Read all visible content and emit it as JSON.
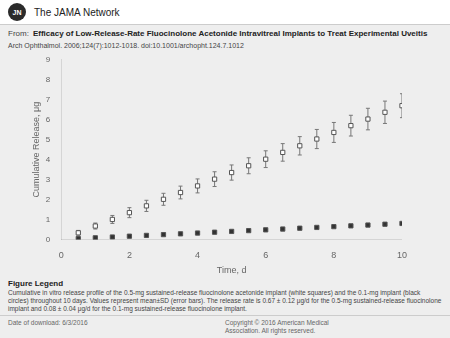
{
  "chart_data": {
    "type": "scatter",
    "title": "Efficacy of Low-Release-Rate Fluocinolone Acetonide Intravitreal Implants to Treat Experimental Uveitis",
    "subtitle": "Arch Ophthalmol. 2006;124(7):1012-1018. doi:10.1001/archopht.124.7.1012",
    "x_label": "Time, d",
    "y_label": "Cumulative Release, μg",
    "annotations": [
      "JN",
      "The JAMA Network",
      "From:",
      "Figure Legend",
      "Cumulative in vitro release profile of the 0.5-mg sustained-release fluocinolone acetonide implant (white squares) and the 0.1-mg implant (black circles) throughout 10 days.  Values represent mean±SD (error bars).  The release rate is 0.67 ± 0.12 μg/d for the 0.5-mg sustained-release fluocinolone implant and 0.08 ± 0.04 μg/d for the 0.1-mg sustained-release fluocinolone implant.",
      "Date of download:  6/3/2016",
      "Copyright © 2016 American Medical\nAssociation. All rights reserved."
    ],
    "xlim": [
      0,
      10
    ],
    "ylim": [
      0,
      9
    ],
    "xticks": [
      0,
      2,
      4,
      6,
      8,
      10
    ],
    "yticks": [
      0,
      1,
      2,
      3,
      4,
      5,
      6,
      7,
      8,
      9
    ],
    "grid": false,
    "series": [
      {
        "color": "#ffffff",
        "marker": "square",
        "line_style": "none",
        "x": [
          0.5,
          1,
          1.5,
          2,
          2.5,
          3,
          3.5,
          4,
          4.5,
          5,
          5.5,
          6,
          6.5,
          7,
          7.5,
          8,
          8.5,
          9,
          9.5,
          10
        ],
        "values": [
          0.33,
          0.67,
          1.0,
          1.34,
          1.68,
          2.01,
          2.35,
          2.68,
          3.02,
          3.35,
          3.69,
          4.02,
          4.36,
          4.69,
          5.03,
          5.36,
          5.7,
          6.03,
          6.37,
          6.7
        ],
        "errors": [
          0.12,
          0.15,
          0.2,
          0.25,
          0.28,
          0.3,
          0.32,
          0.35,
          0.37,
          0.38,
          0.4,
          0.42,
          0.44,
          0.46,
          0.48,
          0.5,
          0.52,
          0.54,
          0.56,
          0.6
        ]
      },
      {
        "color": "#333333",
        "marker": "square",
        "line_style": "none",
        "x": [
          0.5,
          1,
          1.5,
          2,
          2.5,
          3,
          3.5,
          4,
          4.5,
          5,
          5.5,
          6,
          6.5,
          7,
          7.5,
          8,
          8.5,
          9,
          9.5,
          10
        ],
        "values": [
          0.04,
          0.08,
          0.12,
          0.16,
          0.2,
          0.24,
          0.28,
          0.32,
          0.36,
          0.4,
          0.44,
          0.48,
          0.52,
          0.56,
          0.6,
          0.64,
          0.68,
          0.72,
          0.76,
          0.8
        ],
        "errors": [
          0.02,
          0.02,
          0.02,
          0.02,
          0.02,
          0.02,
          0.02,
          0.02,
          0.02,
          0.02,
          0.02,
          0.02,
          0.02,
          0.02,
          0.02,
          0.02,
          0.02,
          0.02,
          0.02,
          0.05
        ]
      }
    ]
  }
}
